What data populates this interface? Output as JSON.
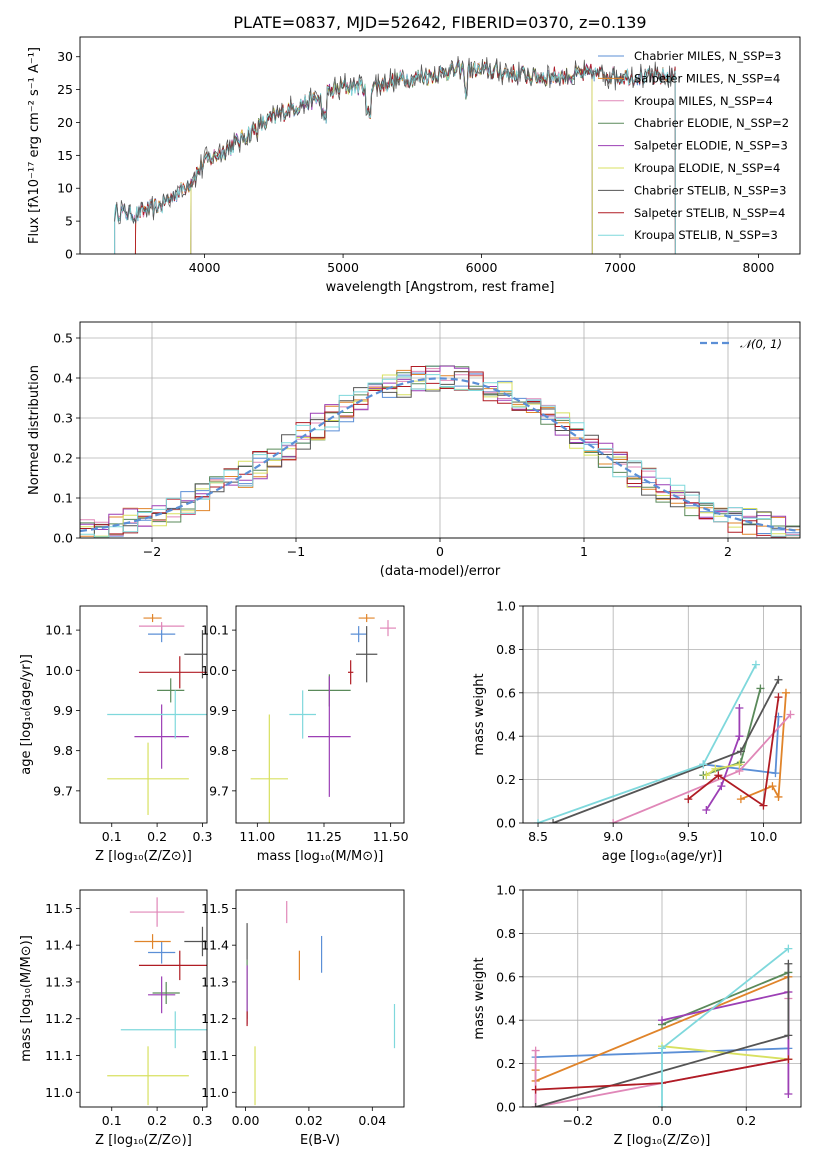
{
  "figure_title": "PLATE=0837, MJD=52642, FIBERID=0370, z=0.139",
  "colors": {
    "Chabrier MILES": "#5b8fd6",
    "Salpeter MILES": "#e0842a",
    "Kroupa MILES": "#e087b8",
    "Chabrier ELODIE": "#5a8a5a",
    "Salpeter ELODIE": "#9c3fb5",
    "Kroupa ELODIE": "#d8e060",
    "Chabrier STELIB": "#555555",
    "Salpeter STELIB": "#b01c24",
    "Kroupa STELIB": "#7fd8dc"
  },
  "chart_data": [
    {
      "id": "spectrum",
      "type": "line",
      "title": "PLATE=0837, MJD=52642, FIBERID=0370, z=0.139",
      "xlabel": "wavelength [Angstrom, rest frame]",
      "ylabel": "Flux [fλ10⁻¹⁷ erg cm⁻² s⁻¹ A⁻¹]",
      "xlim": [
        3100,
        8300
      ],
      "ylim": [
        0,
        33
      ],
      "xticks": [
        4000,
        5000,
        6000,
        7000,
        8000
      ],
      "yticks": [
        0,
        5,
        10,
        15,
        20,
        25,
        30
      ],
      "legend_position": "right",
      "legend": [
        "Chabrier MILES, N_SSP=3",
        "Salpeter MILES, N_SSP=4",
        "Kroupa MILES, N_SSP=4",
        "Chabrier ELODIE, N_SSP=2",
        "Salpeter ELODIE, N_SSP=3",
        "Kroupa ELODIE, N_SSP=4",
        "Chabrier STELIB, N_SSP=3",
        "Salpeter STELIB, N_SSP=4",
        "Kroupa STELIB, N_SSP=3"
      ],
      "continuum": {
        "x": [
          3350,
          3500,
          3700,
          3900,
          4000,
          4200,
          4400,
          4600,
          4800,
          5000,
          5200,
          5400,
          5600,
          5800,
          6000,
          6200,
          6400,
          6600,
          6800,
          7000,
          7200,
          7400
        ],
        "y": [
          6.5,
          6.0,
          7.5,
          11.0,
          14.0,
          16.5,
          19.5,
          22.0,
          23.5,
          25.5,
          25.5,
          26.5,
          27.0,
          28.0,
          28.0,
          27.5,
          27.0,
          27.0,
          27.5,
          27.0,
          27.0,
          27.0
        ]
      },
      "model_ranges": [
        [
          3350,
          7400
        ],
        [
          3500,
          7400
        ],
        [
          3350,
          7400
        ],
        [
          3900,
          6800
        ],
        [
          3900,
          6800
        ],
        [
          3900,
          6800
        ],
        [
          3350,
          7400
        ],
        [
          3500,
          7400
        ],
        [
          3350,
          7400
        ]
      ]
    },
    {
      "id": "residuals",
      "type": "histogram",
      "xlabel": "(data-model)/error",
      "ylabel": "Normed distribution",
      "xlim": [
        -2.5,
        2.5
      ],
      "ylim": [
        0,
        0.54
      ],
      "xticks": [
        -2,
        -1,
        0,
        1,
        2
      ],
      "yticks": [
        0.0,
        0.1,
        0.2,
        0.3,
        0.4,
        0.5
      ],
      "grid": true,
      "legend": [
        "𝒩(0, 1)"
      ],
      "legend_position": "top-right",
      "bin_width": 0.1
    },
    {
      "id": "age-Z",
      "type": "scatter",
      "xlabel": "Z [log₁₀(Z/Z⊙)]",
      "ylabel": "age  [log₁₀(age/yr)]",
      "xlim": [
        0.03,
        0.31
      ],
      "ylim": [
        9.62,
        10.16
      ],
      "xticks": [
        0.1,
        0.2,
        0.3
      ],
      "yticks": [
        9.7,
        9.8,
        9.9,
        10.0,
        10.1
      ],
      "points": [
        {
          "x": 0.21,
          "y": 10.09,
          "xerr": 0.03,
          "yerr": 0.02
        },
        {
          "x": 0.19,
          "y": 10.13,
          "xerr": 0.02,
          "yerr": 0.01
        },
        {
          "x": 0.21,
          "y": 10.11,
          "xerr": 0.05,
          "yerr": 0.01
        },
        {
          "x": 0.23,
          "y": 9.95,
          "xerr": 0.03,
          "yerr": 0.03
        },
        {
          "x": 0.21,
          "y": 9.835,
          "xerr": 0.06,
          "yerr": 0.08
        },
        {
          "x": 0.18,
          "y": 9.73,
          "xerr": 0.09,
          "yerr": 0.09
        },
        {
          "x": 0.3,
          "y": 10.04,
          "xerr": 0.04,
          "yerr": 0.06
        },
        {
          "x": 0.25,
          "y": 9.995,
          "xerr": 0.09,
          "yerr": 0.04
        },
        {
          "x": 0.24,
          "y": 9.89,
          "xerr": 0.15,
          "yerr": 0.06
        }
      ]
    },
    {
      "id": "age-mass",
      "type": "scatter",
      "xlabel": "mass [log₁₀(M/M⊙)]",
      "ylabel": "",
      "xlim": [
        10.92,
        11.55
      ],
      "ylim": [
        9.62,
        10.16
      ],
      "xticks": [
        11.0,
        11.25,
        11.5
      ],
      "xticklabels": [
        "11.00",
        "11.25",
        "11.50"
      ],
      "yticks": [
        9.7,
        9.8,
        9.9,
        10.0,
        10.1
      ],
      "points": [
        {
          "x": 11.38,
          "y": 10.09,
          "xerr": 0.03,
          "yerr": 0.02
        },
        {
          "x": 11.41,
          "y": 10.13,
          "xerr": 0.03,
          "yerr": 0.01
        },
        {
          "x": 11.49,
          "y": 10.105,
          "xerr": 0.03,
          "yerr": 0.02
        },
        {
          "x": 11.27,
          "y": 9.95,
          "xerr": 0.08,
          "yerr": 0.04
        },
        {
          "x": 11.27,
          "y": 9.835,
          "xerr": 0.08,
          "yerr": 0.15
        },
        {
          "x": 11.045,
          "y": 9.73,
          "xerr": 0.07,
          "yerr": 0.16
        },
        {
          "x": 11.41,
          "y": 10.04,
          "xerr": 0.04,
          "yerr": 0.07
        },
        {
          "x": 11.35,
          "y": 9.995,
          "xerr": 0.01,
          "yerr": 0.03
        },
        {
          "x": 11.17,
          "y": 9.89,
          "xerr": 0.05,
          "yerr": 0.06
        }
      ]
    },
    {
      "id": "weight-age",
      "type": "line",
      "xlabel": "age  [log₁₀(age/yr)]",
      "ylabel": "mass weight",
      "xlim": [
        8.4,
        10.25
      ],
      "ylim": [
        0,
        1.0
      ],
      "xticks": [
        8.5,
        9.0,
        9.5,
        10.0
      ],
      "yticks": [
        0.0,
        0.2,
        0.4,
        0.6,
        0.8,
        1.0
      ],
      "grid": true,
      "series": [
        {
          "x": [
            9.6,
            10.08,
            10.1
          ],
          "y": [
            0.27,
            0.23,
            0.49
          ]
        },
        {
          "x": [
            9.85,
            10.06,
            10.1,
            10.15
          ],
          "y": [
            0.11,
            0.17,
            0.12,
            0.6
          ]
        },
        {
          "x": [
            9.0,
            9.84,
            10.18
          ],
          "y": [
            0.0,
            0.24,
            0.5
          ]
        },
        {
          "x": [
            9.6,
            9.85,
            9.98
          ],
          "y": [
            0.22,
            0.28,
            0.62
          ]
        },
        {
          "x": [
            9.62,
            9.72,
            9.84,
            9.84
          ],
          "y": [
            0.06,
            0.17,
            0.4,
            0.53
          ]
        },
        {
          "x": [
            9.62,
            9.68,
            9.84
          ],
          "y": [
            0.22,
            0.25,
            0.27
          ]
        },
        {
          "x": [
            8.6,
            9.85,
            10.1
          ],
          "y": [
            0.0,
            0.33,
            0.66
          ]
        },
        {
          "x": [
            9.5,
            9.7,
            10.0,
            10.1
          ],
          "y": [
            0.11,
            0.22,
            0.08,
            0.58
          ]
        },
        {
          "x": [
            8.5,
            9.6,
            9.95
          ],
          "y": [
            0.0,
            0.27,
            0.73
          ]
        }
      ]
    },
    {
      "id": "mass-Z",
      "type": "scatter",
      "xlabel": "Z [log₁₀(Z/Z⊙)]",
      "ylabel": "mass [log₁₀(M/M⊙)]",
      "xlim": [
        0.03,
        0.31
      ],
      "ylim": [
        10.96,
        11.55
      ],
      "xticks": [
        0.1,
        0.2,
        0.3
      ],
      "yticks": [
        11.0,
        11.1,
        11.2,
        11.3,
        11.4,
        11.5
      ],
      "points": [
        {
          "x": 0.21,
          "y": 11.38,
          "xerr": 0.03,
          "yerr": 0.03
        },
        {
          "x": 0.19,
          "y": 11.41,
          "xerr": 0.04,
          "yerr": 0.02
        },
        {
          "x": 0.2,
          "y": 11.49,
          "xerr": 0.06,
          "yerr": 0.04
        },
        {
          "x": 0.22,
          "y": 11.27,
          "xerr": 0.03,
          "yerr": 0.03
        },
        {
          "x": 0.21,
          "y": 11.265,
          "xerr": 0.03,
          "yerr": 0.05
        },
        {
          "x": 0.18,
          "y": 11.045,
          "xerr": 0.09,
          "yerr": 0.08
        },
        {
          "x": 0.3,
          "y": 11.41,
          "xerr": 0.04,
          "yerr": 0.04
        },
        {
          "x": 0.25,
          "y": 11.345,
          "xerr": 0.09,
          "yerr": 0.04
        },
        {
          "x": 0.24,
          "y": 11.17,
          "xerr": 0.12,
          "yerr": 0.05
        }
      ]
    },
    {
      "id": "mass-EBV",
      "type": "scatter",
      "xlabel": "E(B-V)",
      "ylabel": "",
      "xlim": [
        -0.003,
        0.05
      ],
      "ylim": [
        10.96,
        11.55
      ],
      "xticks": [
        0.0,
        0.02,
        0.04
      ],
      "xticklabels": [
        "0.00",
        "0.02",
        "0.04"
      ],
      "yticks": [
        11.0,
        11.1,
        11.2,
        11.3,
        11.4,
        11.5
      ],
      "points": [
        {
          "x": 0.024,
          "y": 11.375,
          "xerr": 0,
          "yerr": 0.05
        },
        {
          "x": 0.017,
          "y": 11.345,
          "xerr": 0,
          "yerr": 0.04
        },
        {
          "x": 0.013,
          "y": 11.49,
          "xerr": 0,
          "yerr": 0.03
        },
        {
          "x": 0.0005,
          "y": 11.28,
          "xerr": 0,
          "yerr": 0.08
        },
        {
          "x": 0.0005,
          "y": 11.265,
          "xerr": 0,
          "yerr": 0.08
        },
        {
          "x": 0.003,
          "y": 11.045,
          "xerr": 0,
          "yerr": 0.08
        },
        {
          "x": 0.0005,
          "y": 11.41,
          "xerr": 0,
          "yerr": 0.05
        },
        {
          "x": 0.0005,
          "y": 11.2,
          "xerr": 0,
          "yerr": 0.02
        },
        {
          "x": 0.047,
          "y": 11.18,
          "xerr": 0,
          "yerr": 0.06
        }
      ]
    },
    {
      "id": "weight-Z",
      "type": "line",
      "xlabel": "Z [log₁₀(Z/Z⊙)]",
      "ylabel": "mass weight",
      "xlim": [
        -0.33,
        0.33
      ],
      "ylim": [
        0,
        1.0
      ],
      "xticks": [
        -0.2,
        0.0,
        0.2
      ],
      "xticklabels": [
        "−0.2",
        "0.0",
        "0.2"
      ],
      "yticks": [
        0.0,
        0.2,
        0.4,
        0.6,
        0.8,
        1.0
      ],
      "grid": true,
      "series": [
        {
          "x": [
            -0.3,
            0.0,
            0.3
          ],
          "y": [
            0.23,
            0.25,
            0.27
          ]
        },
        {
          "x": [
            -0.3,
            -0.3,
            0.3
          ],
          "y": [
            0.17,
            0.12,
            0.6
          ]
        },
        {
          "x": [
            -0.3,
            -0.3,
            0.3,
            0.3,
            0.3
          ],
          "y": [
            0.26,
            0.0,
            0.22,
            0.5,
            0.53
          ]
        },
        {
          "x": [
            0.0,
            0.3
          ],
          "y": [
            0.38,
            0.62
          ]
        },
        {
          "x": [
            0.0,
            0.3,
            0.3
          ],
          "y": [
            0.4,
            0.53,
            0.06
          ]
        },
        {
          "x": [
            0.0,
            0.3
          ],
          "y": [
            0.28,
            0.22
          ]
        },
        {
          "x": [
            -0.3,
            0.3,
            0.3
          ],
          "y": [
            0.0,
            0.33,
            0.66
          ]
        },
        {
          "x": [
            -0.3,
            0.0,
            0.3
          ],
          "y": [
            0.08,
            0.11,
            0.22
          ]
        },
        {
          "x": [
            0.0,
            0.0,
            0.3
          ],
          "y": [
            0.0,
            0.27,
            0.73
          ]
        }
      ]
    }
  ]
}
